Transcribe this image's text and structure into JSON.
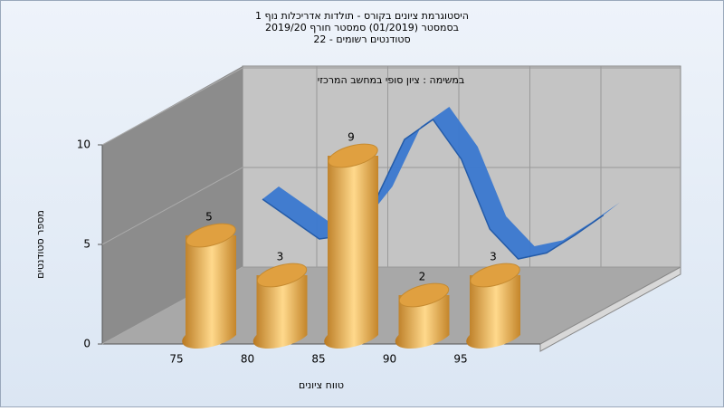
{
  "chart_data": {
    "type": "bar",
    "title": [
      "היסטוגרמת ציונים בקורס - תולדות אדריכלות נוף 1",
      "בסמסטר  (01/2019)  סמסטר חורף 2019/20",
      "סטודנטים רשומים - 22"
    ],
    "subtitle": "במשימה : ציון סופי במחשב המרכזי",
    "x_label": "טווח ציונים",
    "y_label": "מספר סטודנטים",
    "categories": [
      "75",
      "80",
      "85",
      "90",
      "95"
    ],
    "values": [
      5,
      3,
      9,
      2,
      3
    ],
    "color": "#e3a443",
    "ylim": [
      0,
      10
    ],
    "yticks": [
      0,
      5,
      10
    ],
    "grid": true,
    "curve": {
      "color": "#3a78d0",
      "x": [
        75,
        77,
        79,
        81,
        83,
        85,
        87,
        89,
        91,
        93,
        95,
        97,
        99
      ],
      "values": [
        5,
        4,
        3,
        3.2,
        5,
        8,
        9,
        7,
        3.5,
        2,
        2.3,
        3.2,
        4.2
      ]
    }
  }
}
